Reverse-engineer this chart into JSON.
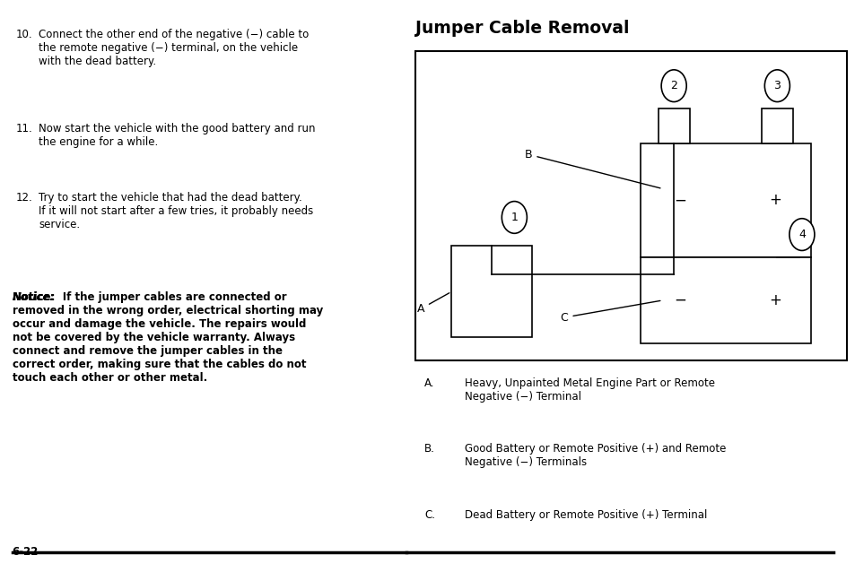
{
  "title": "Jumper Cable Removal",
  "bg_color": "#ffffff",
  "page_num": "6-22",
  "items": [
    [
      "10.",
      "Connect the other end of the negative (−) cable to\nthe remote negative (−) terminal, on the vehicle\nwith the dead battery."
    ],
    [
      "11.",
      "Now start the vehicle with the good battery and run\nthe engine for a while."
    ],
    [
      "12.",
      "Try to start the vehicle that had the dead battery.\nIf it will not start after a few tries, it probably needs\nservice."
    ]
  ],
  "notice_label": "Notice:",
  "notice_text": "If the jumper cables are connected or\nremoved in the wrong order, electrical shorting may\noccur and damage the vehicle. The repairs would\nnot be covered by the vehicle warranty. Always\nconnect and remove the jumper cables in the\ncorrect order, making sure that the cables do not\ntouch each other or other metal.",
  "legend_A": "Heavy, Unpainted Metal Engine Part or Remote\nNegative (−) Terminal",
  "legend_B": "Good Battery or Remote Positive (+) and Remote\nNegative (−) Terminals",
  "legend_C": "Dead Battery or Remote Positive (+) Terminal",
  "font_size_body": 8.5,
  "font_size_title": 13.5,
  "font_size_legend": 8.5
}
